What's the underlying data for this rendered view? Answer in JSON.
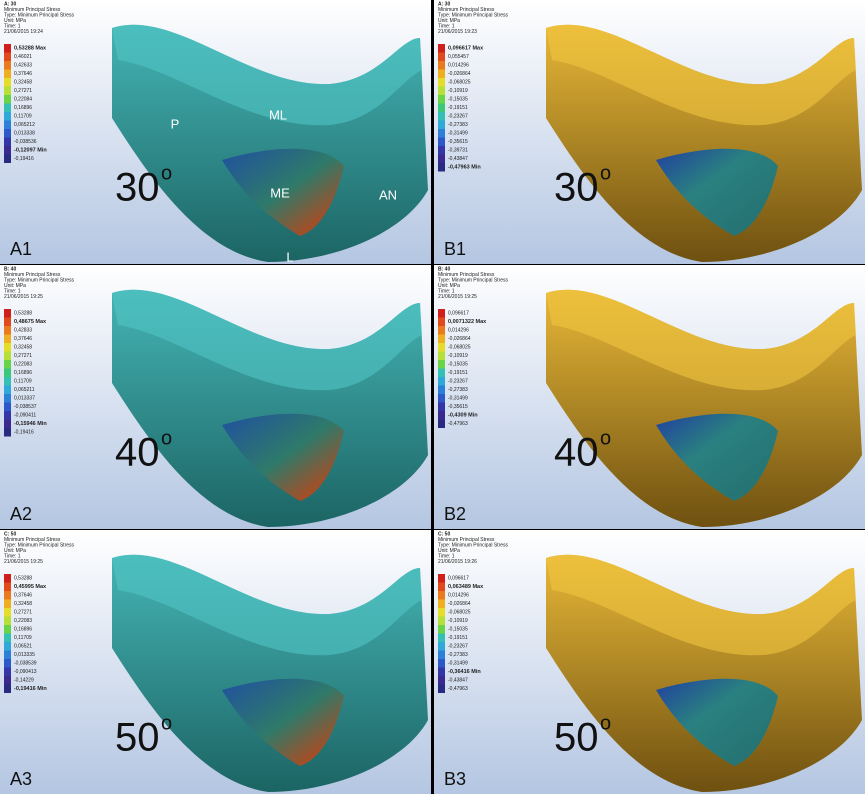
{
  "panels": [
    {
      "label": "A1",
      "angle": "30",
      "angle_sup": "o",
      "header": [
        "A: 30",
        "Minimum Principal Stress",
        "Type: Minimum Principal Stress",
        "Unit: MPa",
        "Time: 1",
        "21/06/2015 19:24"
      ],
      "legend": [
        "0,53288 Max",
        "0,46021",
        "0,42633",
        "0,37646",
        "0,32458",
        "0,27271",
        "0,22084",
        "0,16896",
        "0,11709",
        "0,065212",
        "0,013338",
        "-0,038536",
        "-0,12097 Min",
        "-0,19416"
      ],
      "annotations": [
        "P",
        "ML",
        "ME",
        "AN",
        "L"
      ]
    },
    {
      "label": "B1",
      "angle": "30",
      "angle_sup": "o",
      "header": [
        "A: 30",
        "Minimum Principal Stress",
        "Type: Minimum Principal Stress",
        "Unit: MPa",
        "Time: 1",
        "21/06/2015 19:23"
      ],
      "legend": [
        "0,096617 Max",
        "0,055457",
        "0,014296",
        "-0,026864",
        "-0,068025",
        "-0,10919",
        "-0,15035",
        "-0,19151",
        "-0,23267",
        "-0,27383",
        "-0,31499",
        "-0,35615",
        "-0,39731",
        "-0,43847",
        "-0,47963 Min"
      ],
      "annotations": []
    },
    {
      "label": "A2",
      "angle": "40",
      "angle_sup": "o",
      "header": [
        "B: 40",
        "Minimum Principal Stress",
        "Type: Minimum Principal Stress",
        "Unit: MPa",
        "Time: 1",
        "21/06/2015 19:25"
      ],
      "legend": [
        "0,53288",
        "0,48675 Max",
        "0,42833",
        "0,37646",
        "0,32458",
        "0,27271",
        "0,22083",
        "0,16896",
        "0,11709",
        "0,065211",
        "0,013337",
        "-0,038537",
        "-0,090411",
        "-0,15946 Min",
        "-0,19416"
      ],
      "annotations": []
    },
    {
      "label": "B2",
      "angle": "40",
      "angle_sup": "o",
      "header": [
        "B: 40",
        "Minimum Principal Stress",
        "Type: Minimum Principal Stress",
        "Unit: MPa",
        "Time: 1",
        "21/06/2015 19:25"
      ],
      "legend": [
        "0,096617",
        "0,0071322 Max",
        "0,014296",
        "-0,026864",
        "-0,068025",
        "-0,10919",
        "-0,15035",
        "-0,19151",
        "-0,23267",
        "-0,27383",
        "-0,31499",
        "-0,35615",
        "-0,4309 Min",
        "-0,47963"
      ],
      "annotations": []
    },
    {
      "label": "A3",
      "angle": "50",
      "angle_sup": "o",
      "header": [
        "C: 50",
        "Minimum Principal Stress",
        "Type: Minimum Principal Stress",
        "Unit: MPa",
        "Time: 1",
        "21/06/2015 19:25"
      ],
      "legend": [
        "0,53288",
        "0,45995 Max",
        "0,37646",
        "0,32458",
        "0,27271",
        "0,22083",
        "0,16896",
        "0,11709",
        "0,06521",
        "0,013335",
        "-0,038539",
        "-0,090413",
        "-0,14229",
        "-0,19416 Min"
      ],
      "annotations": []
    },
    {
      "label": "B3",
      "angle": "50",
      "angle_sup": "o",
      "header": [
        "C: 50",
        "Minimum Principal Stress",
        "Type: Minimum Principal Stress",
        "Unit: MPa",
        "Time: 1",
        "21/06/2015 19:26"
      ],
      "legend": [
        "0,096617",
        "0,063489 Max",
        "0,014296",
        "-0,026864",
        "-0,068025",
        "-0,10919",
        "-0,15035",
        "-0,19151",
        "-0,23267",
        "-0,27383",
        "-0,31499",
        "-0,36416 Min",
        "-0,43847",
        "-0,47963"
      ],
      "annotations": []
    }
  ]
}
